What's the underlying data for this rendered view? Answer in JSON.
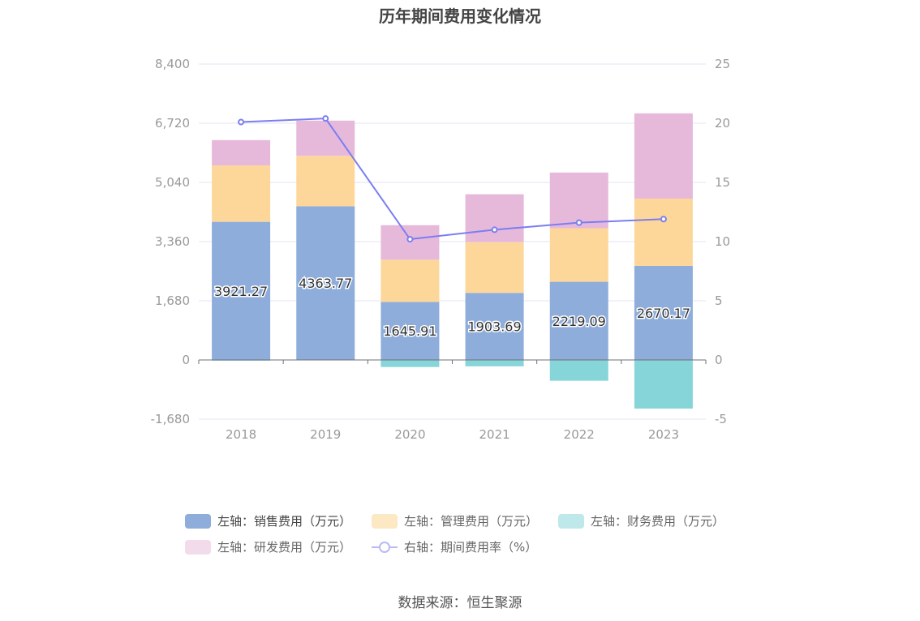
{
  "chart_data": {
    "type": "bar",
    "title": "历年期间费用变化情况",
    "categories": [
      "2018",
      "2019",
      "2020",
      "2021",
      "2022",
      "2023"
    ],
    "stacked": true,
    "left_axis": {
      "ticks": [
        "8,400",
        "6,720",
        "5,040",
        "3,360",
        "1,680",
        "0",
        "-1,680"
      ],
      "ylim": [
        -1680,
        8400
      ]
    },
    "right_axis": {
      "ticks": [
        "25",
        "20",
        "15",
        "10",
        "5",
        "0",
        "-5"
      ],
      "ylim": [
        -5,
        25
      ]
    },
    "series": [
      {
        "name": "左轴：销售费用（万元）",
        "type": "bar",
        "axis": "left",
        "color": "#8eaddb",
        "values": [
          3921.27,
          4363.77,
          1645.91,
          1903.69,
          2219.09,
          2670.17
        ],
        "labels": [
          "3921.27",
          "4363.77",
          "1645.91",
          "1903.69",
          "2219.09",
          "2670.17"
        ]
      },
      {
        "name": "左轴：管理费用（万元）",
        "type": "bar",
        "axis": "left",
        "color": "#fdd79a",
        "legend_color": "#fde8c4",
        "values": [
          1600,
          1430,
          1200,
          1440,
          1520,
          1910
        ]
      },
      {
        "name": "左轴：财务费用（万元）",
        "type": "bar",
        "axis": "left",
        "color": "#86d5d8",
        "legend_color": "#bfe8ea",
        "values": [
          -20,
          0,
          -200,
          -180,
          -590,
          -1380
        ]
      },
      {
        "name": "左轴：研发费用（万元）",
        "type": "bar",
        "axis": "left",
        "color": "#e6b9db",
        "legend_color": "#f2dcec",
        "values": [
          720,
          1000,
          980,
          1360,
          1580,
          2420
        ]
      },
      {
        "name": "右轴：期间费用率（%）",
        "type": "line",
        "axis": "right",
        "color": "#7b7ef0",
        "values": [
          20.1,
          20.4,
          10.2,
          11.0,
          11.6,
          11.9
        ]
      }
    ]
  },
  "source": "数据来源：恒生聚源"
}
